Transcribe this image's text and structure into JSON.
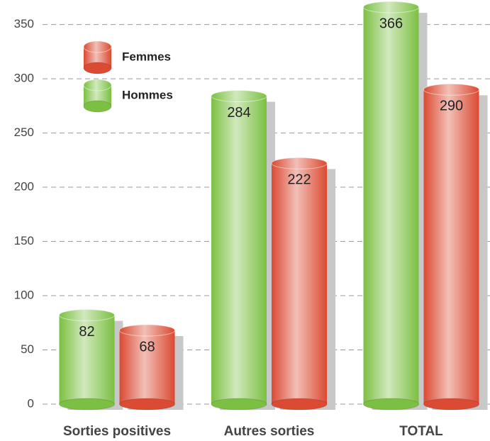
{
  "chart_data": {
    "type": "bar",
    "categories": [
      "Sorties positives",
      "Autres sorties",
      "TOTAL"
    ],
    "series": [
      {
        "name": "Hommes",
        "color": "#7cc043",
        "values": [
          82,
          284,
          366
        ]
      },
      {
        "name": "Femmes",
        "color": "#db4a32",
        "values": [
          68,
          222,
          290
        ]
      }
    ],
    "ylim": [
      0,
      370
    ],
    "yticks": [
      0,
      50,
      100,
      150,
      200,
      250,
      300,
      350
    ],
    "grid": true,
    "legend": "upper left"
  }
}
